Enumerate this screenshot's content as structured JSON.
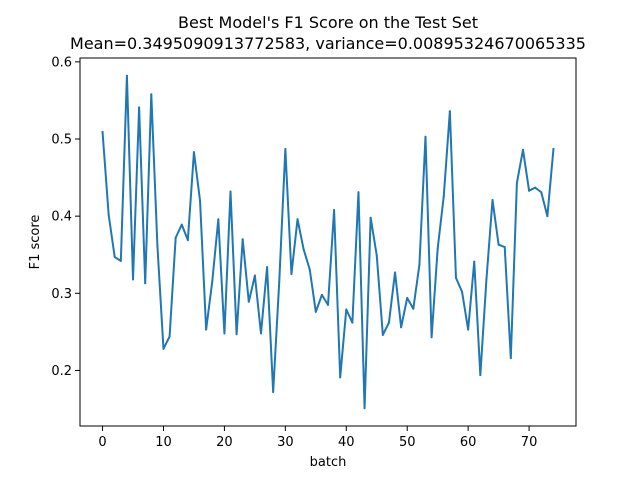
{
  "chart_data": {
    "type": "line",
    "title": "Best Model's F1 Score on the Test Set",
    "subtitle": "Mean=0.3495090913772583, variance=0.00895324670065335",
    "xlabel": "batch",
    "ylabel": "F1 score",
    "xlim": [
      -3.7,
      77.7
    ],
    "ylim": [
      0.128,
      0.605
    ],
    "xticks": [
      0,
      10,
      20,
      30,
      40,
      50,
      60,
      70
    ],
    "yticks": [
      0.2,
      0.3,
      0.4,
      0.5,
      0.6
    ],
    "xtick_labels": [
      "0",
      "10",
      "20",
      "30",
      "40",
      "50",
      "60",
      "70"
    ],
    "ytick_labels": [
      "0.2",
      "0.3",
      "0.4",
      "0.5",
      "0.6"
    ],
    "grid": false,
    "line_color": "#1f77b4",
    "x": [
      0,
      1,
      2,
      3,
      4,
      5,
      6,
      7,
      8,
      9,
      10,
      11,
      12,
      13,
      14,
      15,
      16,
      17,
      18,
      19,
      20,
      21,
      22,
      23,
      24,
      25,
      26,
      27,
      28,
      29,
      30,
      31,
      32,
      33,
      34,
      35,
      36,
      37,
      38,
      39,
      40,
      41,
      42,
      43,
      44,
      45,
      46,
      47,
      48,
      49,
      50,
      51,
      52,
      53,
      54,
      55,
      56,
      57,
      58,
      59,
      60,
      61,
      62,
      63,
      64,
      65,
      66,
      67,
      68,
      69,
      70,
      71,
      72,
      73,
      74
    ],
    "y": [
      0.509,
      0.402,
      0.347,
      0.342,
      0.582,
      0.318,
      0.541,
      0.313,
      0.558,
      0.362,
      0.228,
      0.244,
      0.372,
      0.389,
      0.369,
      0.483,
      0.42,
      0.253,
      0.315,
      0.396,
      0.248,
      0.432,
      0.247,
      0.37,
      0.289,
      0.323,
      0.248,
      0.334,
      0.172,
      0.315,
      0.487,
      0.325,
      0.396,
      0.357,
      0.331,
      0.276,
      0.298,
      0.285,
      0.408,
      0.191,
      0.279,
      0.262,
      0.431,
      0.151,
      0.398,
      0.349,
      0.246,
      0.262,
      0.327,
      0.256,
      0.294,
      0.28,
      0.337,
      0.503,
      0.243,
      0.358,
      0.426,
      0.536,
      0.32,
      0.302,
      0.253,
      0.341,
      0.194,
      0.318,
      0.421,
      0.363,
      0.36,
      0.216,
      0.443,
      0.486,
      0.433,
      0.437,
      0.431,
      0.4,
      0.487
    ]
  }
}
